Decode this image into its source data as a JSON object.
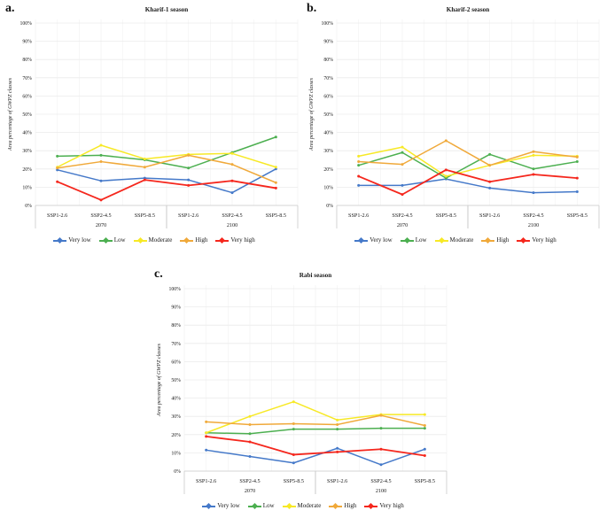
{
  "figure": {
    "background": "#ffffff",
    "axis_color": "#c9c9c9",
    "hgrid_color": "#ebebeb",
    "vgrid_color": "#f3f3f3"
  },
  "chart_data": [
    {
      "type": "line",
      "panel_label": "a.",
      "title": "Kharif-1 season",
      "ylabel": "Area percentage of GWPZ classes",
      "ylim": [
        0,
        100
      ],
      "grid": true,
      "legend_position": "bottom",
      "y_tick_labels": [
        "0%",
        "10%",
        "20%",
        "30%",
        "40%",
        "50%",
        "60%",
        "70%",
        "80%",
        "90%",
        "100%"
      ],
      "categories": [
        "SSP1-2.6",
        "SSP2-4.5",
        "SSP5-8.5",
        "SSP1-2.6",
        "SSP2-4.5",
        "SSP5-8.5"
      ],
      "category_groups": [
        {
          "label": "2070",
          "span": [
            0,
            2
          ]
        },
        {
          "label": "2100",
          "span": [
            3,
            5
          ]
        }
      ],
      "series": [
        {
          "name": "Very low",
          "color": "#4579C9",
          "values": [
            19.5,
            13.5,
            15,
            14,
            7,
            20
          ]
        },
        {
          "name": "Low",
          "color": "#4CAF50",
          "values": [
            27,
            27.5,
            25,
            20.5,
            29,
            37.5
          ]
        },
        {
          "name": "Moderate",
          "color": "#F7E926",
          "values": [
            21,
            33,
            25.5,
            28,
            28.5,
            21
          ]
        },
        {
          "name": "High",
          "color": "#F0A93A",
          "values": [
            20.5,
            24,
            21,
            27.5,
            22.5,
            12.5
          ]
        },
        {
          "name": "Very high",
          "color": "#F5271D",
          "values": [
            13,
            3,
            14,
            11,
            13.5,
            9.5
          ]
        }
      ]
    },
    {
      "type": "line",
      "panel_label": "b.",
      "title": "Kharif-2 season",
      "ylabel": "Area percentage  of GWPZ  classes",
      "ylim": [
        0,
        100
      ],
      "grid": true,
      "legend_position": "bottom",
      "y_tick_labels": [
        "0%",
        "10%",
        "20%",
        "30%",
        "40%",
        "50%",
        "60%",
        "70%",
        "80%",
        "90%",
        "100%"
      ],
      "categories": [
        "SSP1-2.6",
        "SSP2-4.5",
        "SSP5-8.5",
        "SSP1-2.6",
        "SSP2-4.5",
        "SSP5-8.5"
      ],
      "category_groups": [
        {
          "label": "2070",
          "span": [
            0,
            2
          ]
        },
        {
          "label": "2100",
          "span": [
            3,
            5
          ]
        }
      ],
      "series": [
        {
          "name": "Very low",
          "color": "#4579C9",
          "values": [
            11,
            11,
            14.5,
            9.5,
            7,
            7.5
          ]
        },
        {
          "name": "Low",
          "color": "#4CAF50",
          "values": [
            22,
            29,
            15,
            28,
            20,
            24
          ]
        },
        {
          "name": "Moderate",
          "color": "#F7E926",
          "values": [
            27,
            32,
            16,
            22,
            27.5,
            27
          ]
        },
        {
          "name": "High",
          "color": "#F0A93A",
          "values": [
            24,
            22.5,
            35.5,
            22,
            29.5,
            26.5
          ]
        },
        {
          "name": "Very high",
          "color": "#F5271D",
          "values": [
            16,
            6,
            19.5,
            13,
            17,
            15
          ]
        }
      ]
    },
    {
      "type": "line",
      "panel_label": "c.",
      "title": "Rabi season",
      "ylabel": "Area percentage of GWPZ  classes",
      "ylim": [
        0,
        100
      ],
      "grid": true,
      "legend_position": "bottom",
      "y_tick_labels": [
        "0%",
        "10%",
        "20%",
        "30%",
        "40%",
        "50%",
        "60%",
        "70%",
        "80%",
        "90%",
        "100%"
      ],
      "categories": [
        "SSP1-2.6",
        "SSP2-4.5",
        "SSP5-8.5",
        "SSP1-2.6",
        "SSP2-4.5",
        "SSP5-8.5"
      ],
      "category_groups": [
        {
          "label": "2070",
          "span": [
            0,
            2
          ]
        },
        {
          "label": "2100",
          "span": [
            3,
            5
          ]
        }
      ],
      "series": [
        {
          "name": "Very low",
          "color": "#4579C9",
          "values": [
            11.5,
            8,
            4.5,
            12.5,
            3.5,
            12
          ]
        },
        {
          "name": "Low",
          "color": "#4CAF50",
          "values": [
            21,
            20.5,
            23,
            23,
            23.5,
            23.5
          ]
        },
        {
          "name": "Moderate",
          "color": "#F7E926",
          "values": [
            21,
            30,
            38,
            28,
            31,
            31
          ]
        },
        {
          "name": "High",
          "color": "#F0A93A",
          "values": [
            27,
            25.5,
            26,
            25.5,
            30.5,
            25
          ]
        },
        {
          "name": "Very high",
          "color": "#F5271D",
          "values": [
            19,
            16,
            9,
            10.5,
            12,
            8.5
          ]
        }
      ]
    }
  ]
}
